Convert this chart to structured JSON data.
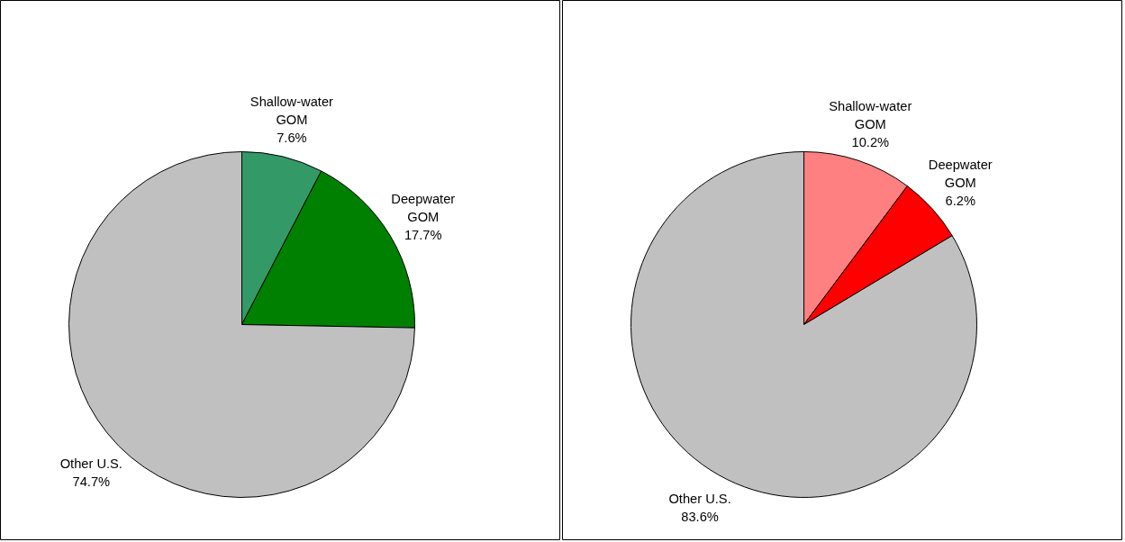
{
  "chart_data": [
    {
      "type": "pie",
      "categories": [
        "Shallow-water GOM",
        "Deepwater GOM",
        "Other U.S."
      ],
      "values": [
        7.6,
        17.7,
        74.7
      ],
      "colors": [
        "#339966",
        "#008000",
        "#c0c0c0"
      ],
      "value_labels": [
        "7.6%",
        "17.7%",
        "74.7%"
      ]
    },
    {
      "type": "pie",
      "categories": [
        "Shallow-water GOM",
        "Deepwater GOM",
        "Other U.S."
      ],
      "values": [
        10.2,
        6.2,
        83.6
      ],
      "colors": [
        "#ff8080",
        "#ff0000",
        "#c0c0c0"
      ],
      "value_labels": [
        "10.2%",
        "6.2%",
        "83.6%"
      ]
    }
  ]
}
